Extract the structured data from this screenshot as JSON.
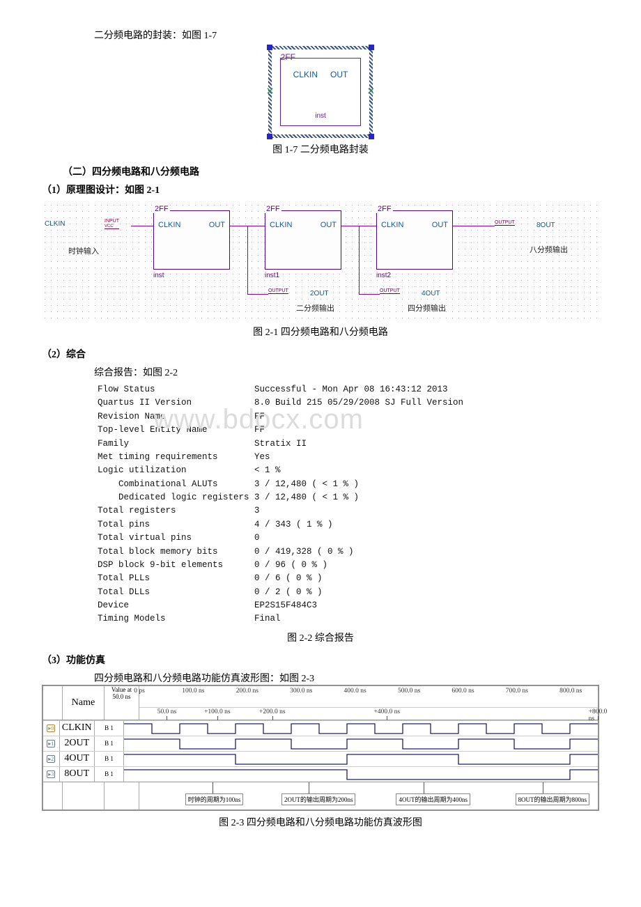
{
  "text": {
    "line1": "二分频电路的封装：如图 1-7",
    "cap17": "图 1-7  二分频电路封装",
    "sec2": "（二）四分频电路和八分频电路",
    "sub21": "（1）原理图设计：如图 2-1",
    "cap21": "图 2-1  四分频电路和八分频电路",
    "sub22": "（2）综合",
    "line22": "综合报告：如图 2-2",
    "cap22": "图 2-2  综合报告",
    "sub23": "（3）功能仿真",
    "line23": "四分频电路和八分频电路功能仿真波形图：如图 2-3",
    "cap23": "图 2-3 四分频电路和八分频电路功能仿真波形图"
  },
  "block17": {
    "title": "2FF",
    "pin_in": "CLKIN",
    "pin_out": "OUT",
    "inst": "inst"
  },
  "schematic21": {
    "block_title": "2FF",
    "pin_in": "CLKIN",
    "pin_out": "OUT",
    "insts": [
      "inst",
      "inst1",
      "inst2"
    ],
    "input_label": "CLKIN",
    "input_cn": "时钟输入",
    "input_pin": "INPUT\nVCC",
    "output_pin": "OUTPUT",
    "outs": [
      {
        "label": "2OUT",
        "cn": "二分频输出"
      },
      {
        "label": "4OUT",
        "cn": "四分频输出"
      },
      {
        "label": "8OUT",
        "cn": "八分频输出"
      }
    ],
    "colors": {
      "block_border": "#5b007f",
      "wire": "#9500a3",
      "pin_text": "#0f5aa7"
    }
  },
  "report": {
    "rows": [
      [
        "Flow Status",
        "Successful - Mon Apr 08 16:43:12 2013"
      ],
      [
        "Quartus II Version",
        "8.0 Build 215 05/29/2008 SJ Full Version"
      ],
      [
        "Revision Name",
        "FF"
      ],
      [
        "Top-level Entity Name",
        "FF"
      ],
      [
        "Family",
        "Stratix II"
      ],
      [
        "Met timing requirements",
        "Yes"
      ],
      [
        "Logic utilization",
        "< 1 %"
      ],
      [
        "    Combinational ALUTs",
        "3 / 12,480 ( < 1 % )"
      ],
      [
        "    Dedicated logic registers",
        "3 / 12,480 ( < 1 % )"
      ],
      [
        "Total registers",
        "3"
      ],
      [
        "Total pins",
        "4 / 343 ( 1 % )"
      ],
      [
        "Total virtual pins",
        "0"
      ],
      [
        "Total block memory bits",
        "0 / 419,328 ( 0 % )"
      ],
      [
        "DSP block 9-bit elements",
        "0 / 96 ( 0 % )"
      ],
      [
        "Total PLLs",
        "0 / 6 ( 0 % )"
      ],
      [
        "Total DLLs",
        "0 / 2 ( 0 % )"
      ],
      [
        "Device",
        "EP2S15F484C3"
      ],
      [
        "Timing Models",
        "Final"
      ]
    ],
    "watermark": "www.bdocx.com"
  },
  "waveform": {
    "name_col": "Name",
    "value_col_l1": "Value at",
    "value_col_l2": "50.0 ns",
    "time_ticks": [
      "0 ps",
      "100.0 ns",
      "200.0 ns",
      "300.0 ns",
      "400.0 ns",
      "500.0 ns",
      "600.0 ns",
      "700.0 ns",
      "800.0 ns"
    ],
    "sub_ticks": [
      "50.0 ns",
      "+100.0 ns",
      "+200.0 ns",
      "+400.0 ns",
      "+800.0 ns"
    ],
    "sub_tick_positions_pct": [
      6,
      17,
      29,
      54,
      100
    ],
    "signals": [
      {
        "idx": "0",
        "name": "CLKIN",
        "val": "B 1",
        "period_ns": 100,
        "type": "input"
      },
      {
        "idx": "1",
        "name": "2OUT",
        "val": "B 1",
        "period_ns": 200,
        "type": "output"
      },
      {
        "idx": "2",
        "name": "4OUT",
        "val": "B 1",
        "period_ns": 400,
        "type": "output"
      },
      {
        "idx": "3",
        "name": "8OUT",
        "val": "B 1",
        "period_ns": 800,
        "type": "output"
      }
    ],
    "time_span_ns": 850,
    "annotations": [
      {
        "text": "时钟的周期为100ns",
        "left_pct": 10
      },
      {
        "text": "2OUT的输出周期为200ns",
        "left_pct": 31
      },
      {
        "text": "4OUT的输出周期为400ns",
        "left_pct": 56
      },
      {
        "text": "8OUT的输出周期为800ns",
        "left_pct": 82
      }
    ],
    "colors": {
      "wave": "#1e1e6e",
      "grid": "#cfcfcf"
    }
  }
}
